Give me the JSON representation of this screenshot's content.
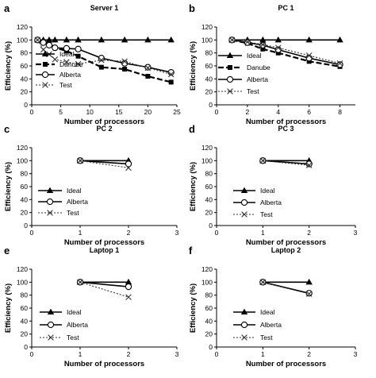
{
  "figure": {
    "xlabel": "Number of processors",
    "ylabel": "Efficiency (%)",
    "colors": {
      "ink": "#000000",
      "test": "#333333",
      "background": "#ffffff"
    }
  },
  "chart_data": [
    {
      "panel_label": "a",
      "title": "Server 1",
      "type": "line",
      "xlabel": "Number of processors",
      "ylabel": "Efficiency (%)",
      "xlim": [
        0,
        25
      ],
      "xticks": [
        0,
        5,
        10,
        15,
        20,
        25
      ],
      "ylim": [
        0,
        120
      ],
      "yticks": [
        0,
        20,
        40,
        60,
        80,
        100,
        120
      ],
      "legend_position": "middle-left",
      "series": [
        {
          "name": "Ideal",
          "marker": "triangle",
          "dash": "solid",
          "x": [
            1,
            2,
            3,
            4,
            6,
            8,
            12,
            16,
            20,
            24
          ],
          "y": [
            100,
            100,
            100,
            100,
            100,
            100,
            100,
            100,
            100,
            100
          ]
        },
        {
          "name": "Danube",
          "marker": "square",
          "dash": "dashed",
          "x": [
            1,
            2,
            3,
            4,
            6,
            8,
            12,
            16,
            20,
            24
          ],
          "y": [
            100,
            97,
            95,
            88,
            83,
            75,
            58,
            55,
            44,
            35
          ]
        },
        {
          "name": "Alberta",
          "marker": "circle",
          "dash": "solid",
          "x": [
            1,
            2,
            3,
            4,
            6,
            8,
            12,
            16,
            20,
            24
          ],
          "y": [
            100,
            96,
            92,
            88,
            87,
            86,
            72,
            64,
            58,
            50
          ]
        },
        {
          "name": "Test",
          "marker": "x",
          "dash": "dotted",
          "x": [
            1,
            2,
            3,
            4,
            6,
            8,
            12,
            16,
            20,
            24
          ],
          "y": [
            100,
            85,
            78,
            70,
            66,
            63,
            69,
            67,
            57,
            47
          ]
        }
      ]
    },
    {
      "panel_label": "b",
      "title": "PC 1",
      "type": "line",
      "xlabel": "Number of processors",
      "ylabel": "Efficiency (%)",
      "xlim": [
        0,
        9
      ],
      "xticks": [
        0,
        2,
        4,
        6,
        8
      ],
      "ylim": [
        0,
        120
      ],
      "yticks": [
        0,
        20,
        40,
        60,
        80,
        100,
        120
      ],
      "legend_position": "middle-left",
      "series": [
        {
          "name": "Ideal",
          "marker": "triangle",
          "dash": "solid",
          "x": [
            1,
            2,
            3,
            4,
            6,
            8
          ],
          "y": [
            100,
            100,
            100,
            100,
            100,
            100
          ]
        },
        {
          "name": "Danube",
          "marker": "square",
          "dash": "dashed",
          "x": [
            1,
            2,
            3,
            4,
            6,
            8
          ],
          "y": [
            100,
            95,
            86,
            80,
            67,
            59
          ]
        },
        {
          "name": "Alberta",
          "marker": "circle",
          "dash": "solid",
          "x": [
            1,
            2,
            3,
            4,
            6,
            8
          ],
          "y": [
            100,
            96,
            92,
            85,
            72,
            62
          ]
        },
        {
          "name": "Test",
          "marker": "x",
          "dash": "dotted",
          "x": [
            1,
            2,
            3,
            4,
            6,
            8
          ],
          "y": [
            100,
            97,
            93,
            88,
            76,
            64
          ]
        }
      ]
    },
    {
      "panel_label": "c",
      "title": "PC 2",
      "type": "line",
      "xlabel": "Number of processors",
      "ylabel": "Efficiency (%)",
      "xlim": [
        0,
        3
      ],
      "xticks": [
        0,
        1,
        2,
        3
      ],
      "ylim": [
        0,
        120
      ],
      "yticks": [
        0,
        20,
        40,
        60,
        80,
        100,
        120
      ],
      "legend_position": "lower-left",
      "series": [
        {
          "name": "Ideal",
          "marker": "triangle",
          "dash": "solid",
          "x": [
            1,
            2
          ],
          "y": [
            100,
            100
          ]
        },
        {
          "name": "Alberta",
          "marker": "circle",
          "dash": "solid",
          "x": [
            1,
            2
          ],
          "y": [
            100,
            95
          ]
        },
        {
          "name": "Test",
          "marker": "x",
          "dash": "dotted",
          "x": [
            1,
            2
          ],
          "y": [
            100,
            89
          ]
        }
      ]
    },
    {
      "panel_label": "d",
      "title": "PC 3",
      "type": "line",
      "xlabel": "Number of processors",
      "ylabel": "Efficiency (%)",
      "xlim": [
        0,
        3
      ],
      "xticks": [
        0,
        1,
        2,
        3
      ],
      "ylim": [
        0,
        120
      ],
      "yticks": [
        0,
        20,
        40,
        60,
        80,
        100,
        120
      ],
      "legend_position": "lower-left",
      "series": [
        {
          "name": "Ideal",
          "marker": "triangle",
          "dash": "solid",
          "x": [
            1,
            2
          ],
          "y": [
            100,
            100
          ]
        },
        {
          "name": "Alberta",
          "marker": "circle",
          "dash": "solid",
          "x": [
            1,
            2
          ],
          "y": [
            100,
            95
          ]
        },
        {
          "name": "Test",
          "marker": "x",
          "dash": "dotted",
          "x": [
            1,
            2
          ],
          "y": [
            100,
            93
          ]
        }
      ]
    },
    {
      "panel_label": "e",
      "title": "Laptop 1",
      "type": "line",
      "xlabel": "Number of processors",
      "ylabel": "Efficiency (%)",
      "xlim": [
        0,
        3
      ],
      "xticks": [
        0,
        1,
        2,
        3
      ],
      "ylim": [
        0,
        120
      ],
      "yticks": [
        0,
        20,
        40,
        60,
        80,
        100,
        120
      ],
      "legend_position": "lower-left",
      "series": [
        {
          "name": "Ideal",
          "marker": "triangle",
          "dash": "solid",
          "x": [
            1,
            2
          ],
          "y": [
            100,
            100
          ]
        },
        {
          "name": "Alberta",
          "marker": "circle",
          "dash": "solid",
          "x": [
            1,
            2
          ],
          "y": [
            100,
            93
          ]
        },
        {
          "name": "Test",
          "marker": "x",
          "dash": "dotted",
          "x": [
            1,
            2
          ],
          "y": [
            100,
            77
          ]
        }
      ]
    },
    {
      "panel_label": "f",
      "title": "Laptop 2",
      "type": "line",
      "xlabel": "Number of processors",
      "ylabel": "Efficiency (%)",
      "xlim": [
        0,
        3
      ],
      "xticks": [
        0,
        1,
        2,
        3
      ],
      "ylim": [
        0,
        120
      ],
      "yticks": [
        0,
        20,
        40,
        60,
        80,
        100,
        120
      ],
      "legend_position": "lower-left",
      "series": [
        {
          "name": "Ideal",
          "marker": "triangle",
          "dash": "solid",
          "x": [
            1,
            2
          ],
          "y": [
            100,
            100
          ]
        },
        {
          "name": "Alberta",
          "marker": "circle",
          "dash": "solid",
          "x": [
            1,
            2
          ],
          "y": [
            100,
            83
          ]
        },
        {
          "name": "Test",
          "marker": "x",
          "dash": "dotted",
          "x": [
            1,
            2
          ],
          "y": [
            100,
            82
          ]
        }
      ]
    }
  ]
}
